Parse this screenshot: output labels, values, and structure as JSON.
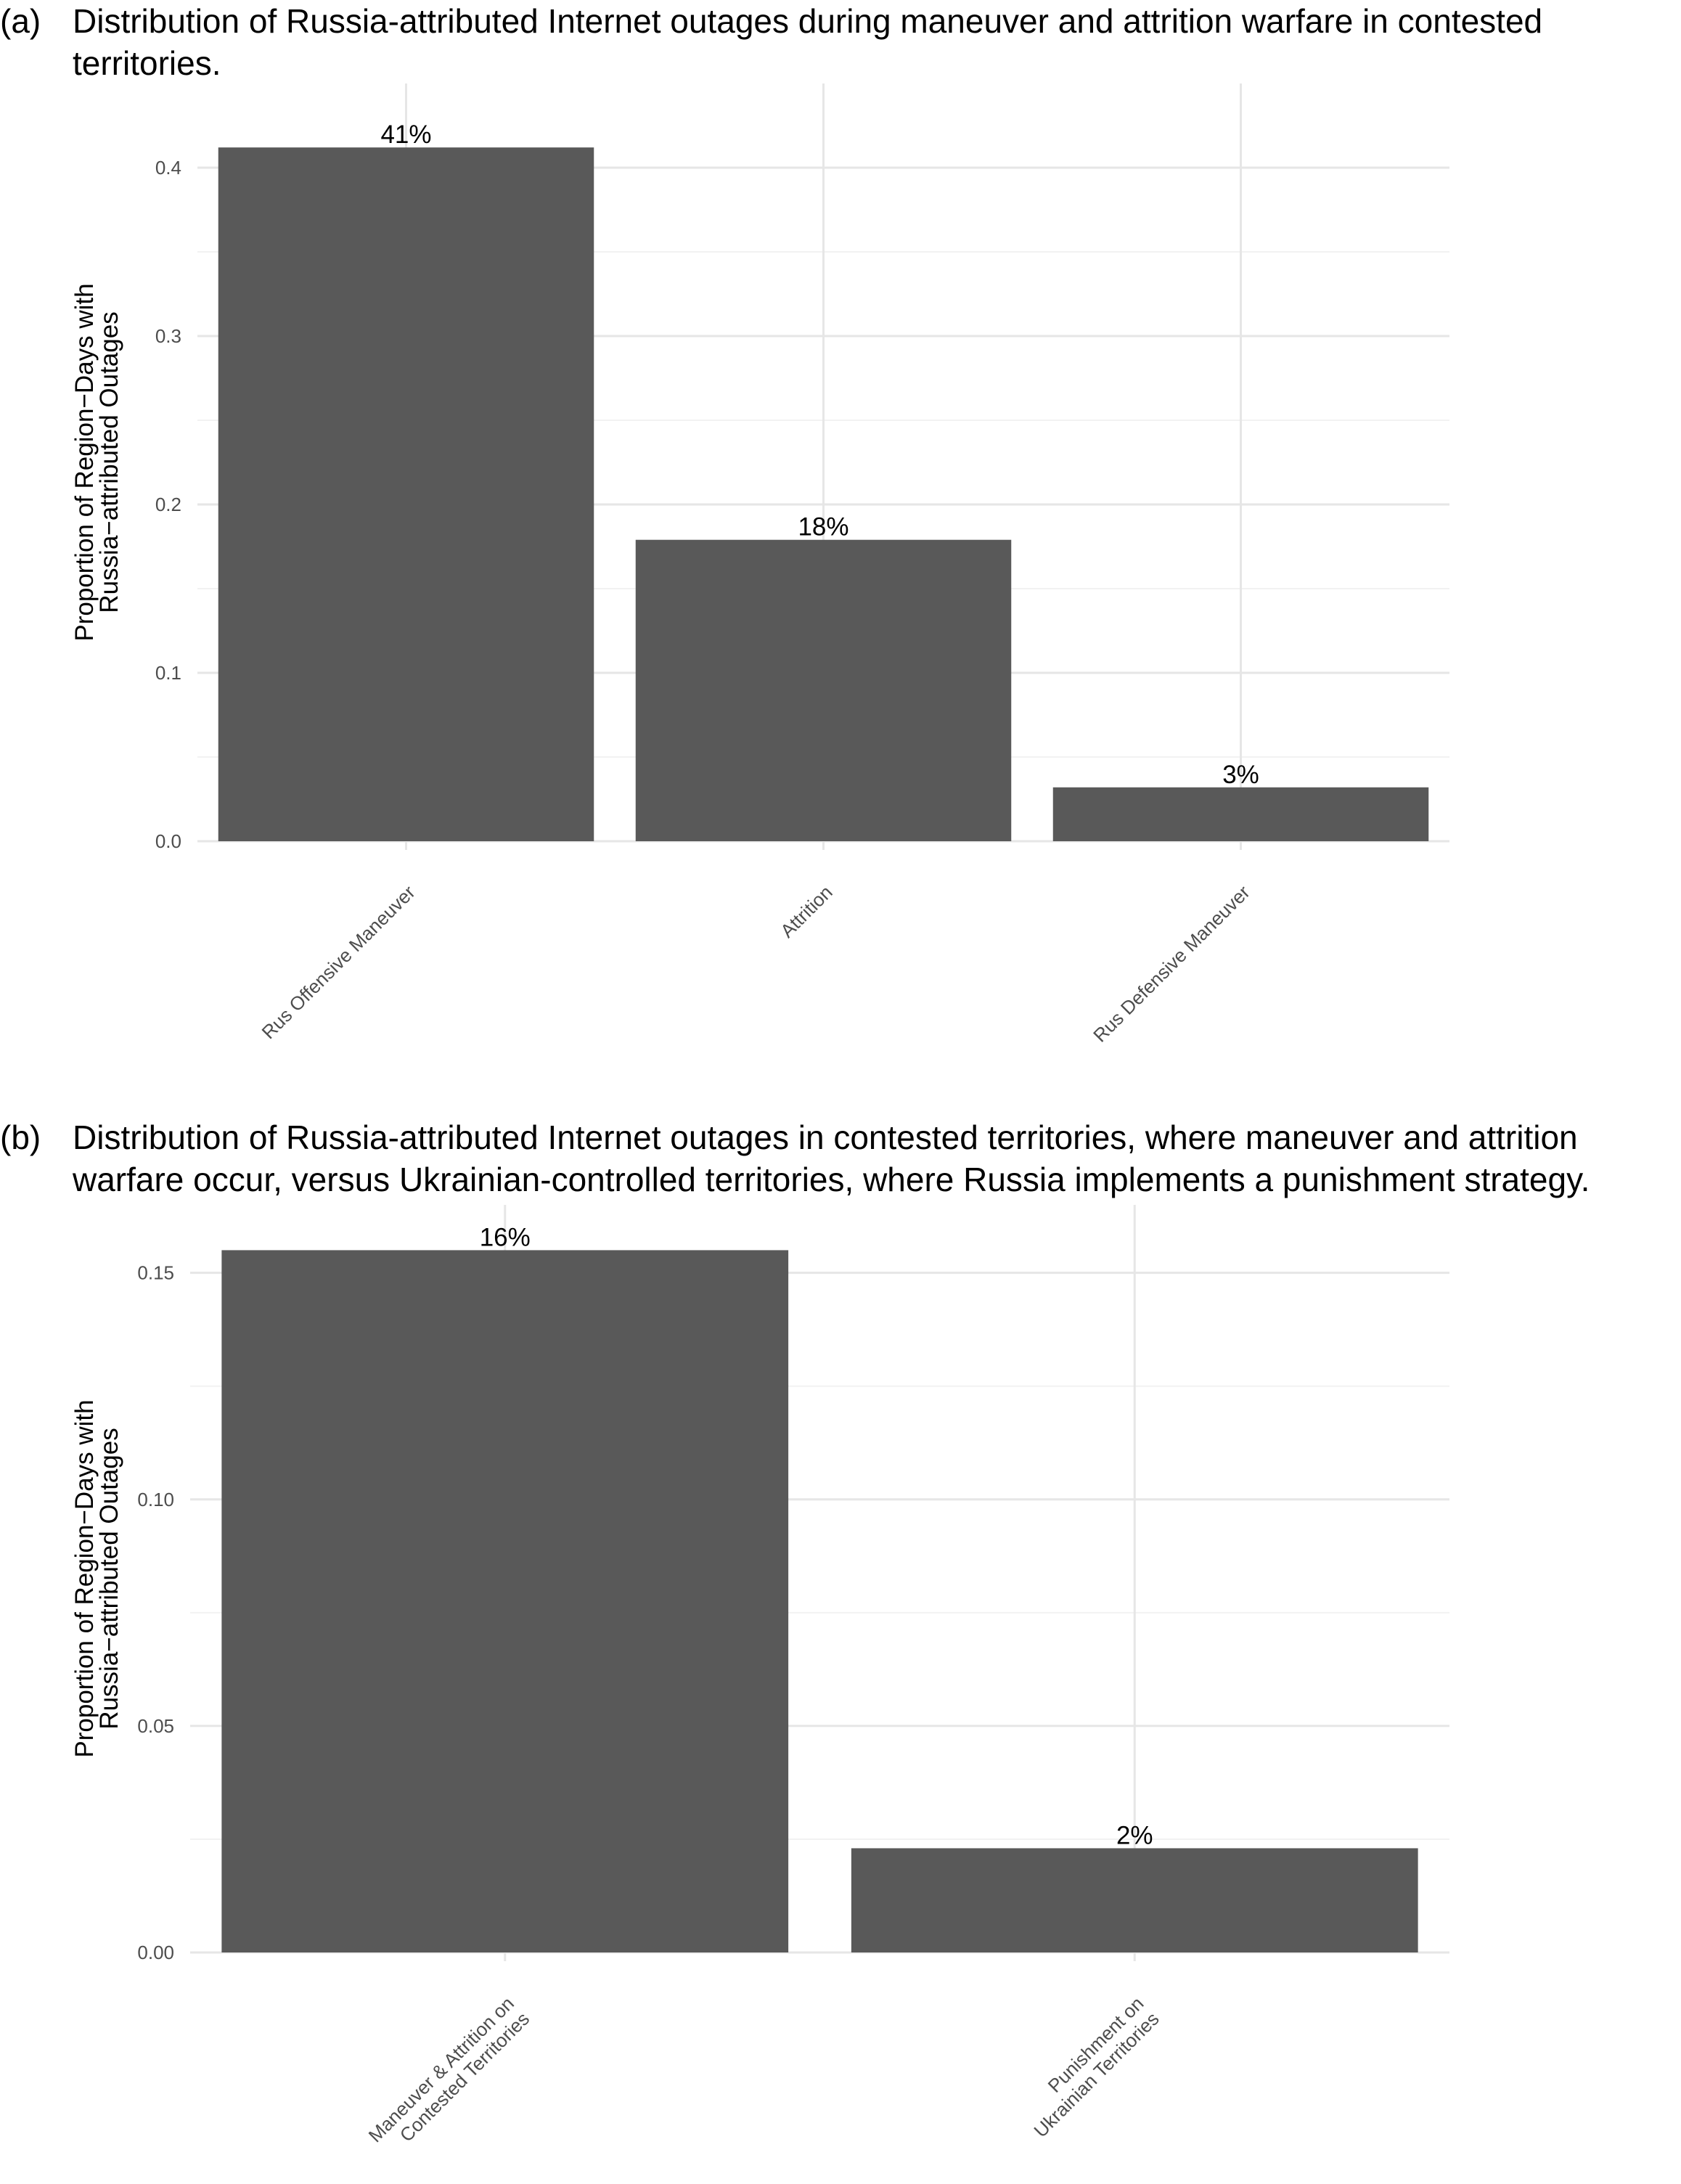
{
  "chart_data": [
    {
      "type": "bar",
      "panel": "(a)",
      "title": "Distribution of Russia-attributed Internet outages during maneuver and attrition warfare in contested territories.",
      "ylabel": [
        "Proportion of Region−Days with",
        "Russia−attributed Outages"
      ],
      "xlabel": "",
      "categories": [
        [
          "Rus Offensive Maneuver"
        ],
        [
          "Attrition"
        ],
        [
          "Rus Defensive Maneuver"
        ]
      ],
      "values": [
        0.412,
        0.179,
        0.032
      ],
      "data_labels": [
        "41%",
        "18%",
        "3%"
      ],
      "ylim": [
        0,
        0.45
      ],
      "yticks": [
        0.0,
        0.1,
        0.2,
        0.3,
        0.4
      ],
      "ytick_labels": [
        "0.0",
        "0.1",
        "0.2",
        "0.3",
        "0.4"
      ],
      "bar_color": "#595959",
      "grid": true
    },
    {
      "type": "bar",
      "panel": "(b)",
      "title": "Distribution of Russia-attributed Internet outages in contested territories, where maneuver and attrition warfare occur, versus Ukrainian-controlled territories, where Russia implements a punishment strategy.",
      "ylabel": [
        "Proportion of Region−Days with",
        "Russia−attributed Outages"
      ],
      "xlabel": "",
      "categories": [
        [
          "Maneuver & Attrition on",
          "Contested Territories"
        ],
        [
          "Punishment on",
          "Ukrainian Territories"
        ]
      ],
      "values": [
        0.155,
        0.023
      ],
      "data_labels": [
        "16%",
        "2%"
      ],
      "ylim": [
        0,
        0.165
      ],
      "yticks": [
        0.0,
        0.05,
        0.1,
        0.15
      ],
      "ytick_labels": [
        "0.00",
        "0.05",
        "0.10",
        "0.15"
      ],
      "bar_color": "#595959",
      "grid": true
    }
  ]
}
